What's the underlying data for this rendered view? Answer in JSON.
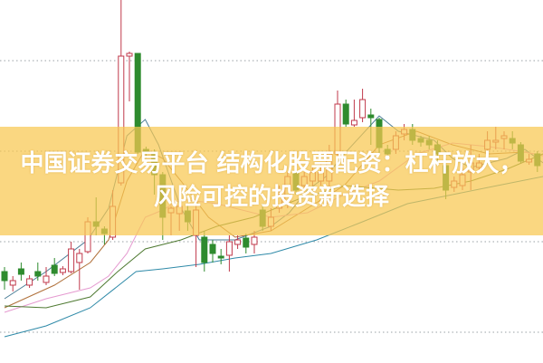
{
  "title": {
    "line1": "中国证券交易平台 结构化股票配资：杠杆放大，",
    "line2": "风险可控的投资新选择"
  },
  "colors": {
    "up": "#c0394b",
    "down": "#2e8b2e",
    "banner": "#f8c850",
    "grid": "#9aa0a6",
    "ma_colors": [
      "#4a7d96",
      "#b0703a",
      "#e59ad0",
      "#4f7a32",
      "#2f8aa8"
    ]
  },
  "chart_data": {
    "type": "candlestick",
    "title": "",
    "xlabel": "",
    "ylabel": "",
    "ylim": [
      0,
      40
    ],
    "grid": true,
    "gridlines": [
      33.3,
      23.3,
      13.3,
      3.3
    ],
    "candles_ohlc": [
      [
        10.0,
        10.5,
        8.0,
        9.0
      ],
      [
        8.5,
        9.5,
        7.8,
        9.0
      ],
      [
        10.3,
        11.0,
        9.0,
        9.7
      ],
      [
        8.5,
        9.6,
        8.2,
        9.2
      ],
      [
        10.0,
        11.0,
        9.0,
        9.5
      ],
      [
        8.8,
        10.5,
        8.5,
        9.5
      ],
      [
        10.7,
        11.5,
        9.5,
        9.8
      ],
      [
        9.9,
        10.6,
        9.6,
        10.3
      ],
      [
        10.0,
        13.3,
        9.8,
        12.5
      ],
      [
        11.0,
        12.5,
        8.0,
        12.0
      ],
      [
        12.2,
        16.0,
        12.0,
        15.5
      ],
      [
        15.5,
        18.2,
        14.0,
        15.0
      ],
      [
        14.7,
        15.0,
        13.0,
        14.2
      ],
      [
        13.8,
        19.0,
        13.5,
        17.2
      ],
      [
        19.8,
        40.0,
        19.5,
        33.8
      ],
      [
        33.8,
        34.3,
        28.8,
        34.1
      ],
      [
        34.1,
        34.1,
        23.0,
        23.2
      ],
      [
        23.5,
        23.8,
        22.5,
        23.2
      ],
      [
        23.2,
        23.5,
        18.5,
        20.7
      ],
      [
        20.7,
        21.0,
        13.5,
        16.0
      ],
      [
        16.5,
        17.2,
        14.0,
        17.0
      ],
      [
        16.4,
        17.5,
        14.5,
        17.2
      ],
      [
        16.7,
        17.5,
        14.5,
        15.5
      ],
      [
        14.0,
        17.5,
        10.5,
        16.8
      ],
      [
        13.8,
        14.5,
        10.0,
        11.0
      ],
      [
        13.0,
        13.5,
        11.0,
        12.0
      ],
      [
        11.7,
        12.5,
        10.8,
        11.5
      ],
      [
        11.8,
        14.0,
        10.0,
        13.3
      ],
      [
        13.0,
        14.0,
        12.5,
        13.5
      ],
      [
        13.7,
        14.2,
        12.0,
        12.7
      ],
      [
        13.0,
        14.5,
        12.0,
        13.8
      ],
      [
        16.8,
        17.5,
        14.5,
        15.0
      ],
      [
        15.0,
        17.0,
        14.5,
        16.0
      ],
      [
        17.0,
        19.5,
        16.5,
        18.5
      ],
      [
        17.8,
        21.0,
        17.0,
        20.5
      ],
      [
        21.0,
        21.5,
        18.5,
        19.0
      ],
      [
        19.5,
        21.0,
        19.0,
        20.5
      ],
      [
        20.0,
        21.5,
        19.5,
        21.0
      ],
      [
        20.0,
        22.0,
        19.5,
        21.0
      ],
      [
        20.0,
        24.0,
        19.0,
        23.0
      ],
      [
        23.0,
        30.0,
        22.5,
        28.5
      ],
      [
        28.5,
        29.0,
        26.0,
        26.3
      ],
      [
        26.2,
        29.0,
        26.0,
        26.7
      ],
      [
        27.0,
        30.2,
        26.5,
        29.0
      ],
      [
        27.3,
        28.0,
        24.0,
        27.0
      ],
      [
        26.8,
        27.0,
        23.0,
        23.7
      ],
      [
        23.5,
        24.0,
        22.5,
        23.0
      ],
      [
        23.5,
        25.5,
        23.0,
        25.0
      ],
      [
        25.2,
        26.3,
        24.5,
        25.7
      ],
      [
        25.7,
        26.3,
        24.0,
        24.5
      ],
      [
        24.7,
        25.0,
        23.8,
        24.3
      ],
      [
        24.5,
        25.0,
        23.5,
        24.0
      ],
      [
        24.0,
        24.5,
        22.0,
        23.0
      ],
      [
        21.7,
        22.5,
        18.0,
        19.0
      ],
      [
        19.3,
        20.5,
        18.8,
        20.0
      ],
      [
        19.5,
        22.0,
        19.0,
        20.7
      ],
      [
        21.0,
        24.0,
        19.0,
        22.0
      ],
      [
        21.5,
        23.0,
        21.0,
        22.0
      ],
      [
        23.5,
        25.5,
        23.0,
        24.5
      ],
      [
        24.3,
        26.0,
        23.5,
        24.5
      ],
      [
        24.7,
        25.5,
        23.5,
        25.0
      ],
      [
        24.7,
        25.5,
        23.5,
        24.2
      ],
      [
        24.0,
        24.3,
        22.0,
        22.2
      ],
      [
        22.1,
        23.0,
        21.8,
        22.4
      ],
      [
        23.0,
        23.3,
        21.0,
        21.7
      ]
    ],
    "moving_averages": [
      {
        "points": [
          [
            0,
            7
          ],
          [
            5,
            10
          ],
          [
            10,
            13.5
          ],
          [
            12.5,
            17
          ],
          [
            14.7,
            25
          ],
          [
            16.9,
            26.8
          ],
          [
            18.5,
            24
          ],
          [
            21.2,
            17
          ],
          [
            23.4,
            13.5
          ],
          [
            25.5,
            13.5
          ],
          [
            27.7,
            13.5
          ],
          [
            32,
            15
          ],
          [
            34.2,
            16.5
          ],
          [
            36.4,
            19
          ],
          [
            38.6,
            20.5
          ],
          [
            40.8,
            23
          ],
          [
            45,
            27.2
          ],
          [
            47.3,
            25.5
          ],
          [
            51.6,
            24.5
          ],
          [
            53.8,
            22.5
          ],
          [
            56,
            21.5
          ],
          [
            60.3,
            22.5
          ],
          [
            62.5,
            23.5
          ],
          [
            64.7,
            22
          ]
        ]
      },
      {
        "points": [
          [
            0,
            6
          ],
          [
            6,
            8.5
          ],
          [
            10.3,
            11
          ],
          [
            12.5,
            13.5
          ],
          [
            14.7,
            20
          ],
          [
            16.9,
            23.5
          ],
          [
            19,
            22.5
          ],
          [
            21.2,
            20
          ],
          [
            24.5,
            16
          ],
          [
            27.7,
            13.8
          ],
          [
            32,
            14.5
          ],
          [
            36.4,
            17
          ],
          [
            40.8,
            19.5
          ],
          [
            45,
            24
          ],
          [
            49.5,
            25.5
          ],
          [
            53.8,
            24
          ],
          [
            58.2,
            23
          ],
          [
            62.5,
            23.2
          ],
          [
            64.7,
            22.8
          ]
        ]
      },
      {
        "points": [
          [
            0,
            5.5
          ],
          [
            5,
            7
          ],
          [
            10.3,
            8.2
          ],
          [
            12.5,
            9.5
          ],
          [
            14.7,
            12
          ],
          [
            16.9,
            16
          ],
          [
            19,
            16.8
          ],
          [
            21.2,
            18
          ],
          [
            25.5,
            17.5
          ],
          [
            32,
            16
          ],
          [
            36.4,
            16.5
          ],
          [
            40.8,
            18.5
          ],
          [
            45,
            20
          ],
          [
            49.5,
            23
          ],
          [
            53.8,
            24.2
          ],
          [
            58.2,
            23.8
          ],
          [
            62.5,
            23.2
          ],
          [
            64.7,
            22.8
          ]
        ]
      },
      {
        "points": [
          [
            0,
            6.2
          ],
          [
            5,
            6
          ],
          [
            10.3,
            7.2
          ],
          [
            13.6,
            10
          ],
          [
            16.9,
            12.5
          ],
          [
            21.2,
            13.5
          ],
          [
            25.5,
            15
          ],
          [
            29.9,
            16
          ],
          [
            35.3,
            18
          ],
          [
            40.8,
            19.5
          ],
          [
            47.3,
            19
          ],
          [
            51.6,
            19.2
          ],
          [
            56,
            20
          ],
          [
            60.3,
            21.3
          ],
          [
            64.7,
            23
          ]
        ]
      },
      {
        "points": [
          [
            0,
            2.8
          ],
          [
            5,
            4
          ],
          [
            10.3,
            6
          ],
          [
            15.8,
            10
          ],
          [
            19,
            10.3
          ],
          [
            23.4,
            10.8
          ],
          [
            27.7,
            11.5
          ],
          [
            32,
            12
          ],
          [
            37.5,
            13.5
          ],
          [
            43,
            15.5
          ],
          [
            48.4,
            17.5
          ],
          [
            53.8,
            18.5
          ],
          [
            59.2,
            19.5
          ],
          [
            64.7,
            20.5
          ]
        ]
      }
    ]
  }
}
